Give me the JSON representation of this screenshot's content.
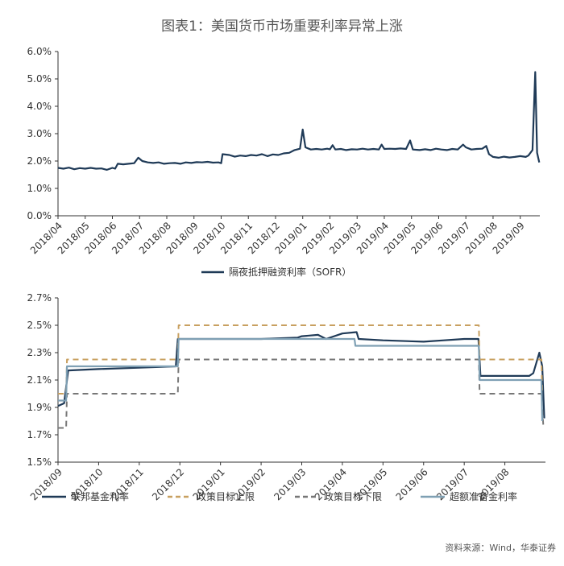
{
  "title": "图表1：美国货币市场重要利率异常上涨",
  "source": "资料来源：Wind，华泰证券",
  "chart_data": [
    {
      "type": "line",
      "ylim": [
        0,
        6
      ],
      "yticks": [
        "0.0%",
        "1.0%",
        "2.0%",
        "3.0%",
        "4.0%",
        "5.0%",
        "6.0%"
      ],
      "categories": [
        "2018/04",
        "2018/05",
        "2018/06",
        "2018/07",
        "2018/08",
        "2018/09",
        "2018/10",
        "2018/11",
        "2018/12",
        "2019/01",
        "2019/02",
        "2019/03",
        "2019/04",
        "2019/05",
        "2019/06",
        "2019/07",
        "2019/08",
        "2019/09"
      ],
      "legend_position": "bottom",
      "grid": false,
      "series": [
        {
          "name": "隔夜抵押融资利率（SOFR）",
          "color": "#1f3a57",
          "style": "solid",
          "points": [
            [
              0,
              1.75
            ],
            [
              0.2,
              1.72
            ],
            [
              0.4,
              1.76
            ],
            [
              0.6,
              1.7
            ],
            [
              0.8,
              1.74
            ],
            [
              1.0,
              1.72
            ],
            [
              1.2,
              1.75
            ],
            [
              1.4,
              1.72
            ],
            [
              1.6,
              1.73
            ],
            [
              1.8,
              1.68
            ],
            [
              2.0,
              1.75
            ],
            [
              2.1,
              1.72
            ],
            [
              2.2,
              1.9
            ],
            [
              2.4,
              1.88
            ],
            [
              2.6,
              1.9
            ],
            [
              2.8,
              1.92
            ],
            [
              2.95,
              2.12
            ],
            [
              3.1,
              2.0
            ],
            [
              3.3,
              1.95
            ],
            [
              3.5,
              1.93
            ],
            [
              3.7,
              1.95
            ],
            [
              3.9,
              1.9
            ],
            [
              4.1,
              1.92
            ],
            [
              4.3,
              1.93
            ],
            [
              4.5,
              1.9
            ],
            [
              4.7,
              1.95
            ],
            [
              4.9,
              1.93
            ],
            [
              5.1,
              1.96
            ],
            [
              5.3,
              1.95
            ],
            [
              5.5,
              1.97
            ],
            [
              5.7,
              1.94
            ],
            [
              5.9,
              1.95
            ],
            [
              6.0,
              1.92
            ],
            [
              6.05,
              2.25
            ],
            [
              6.3,
              2.22
            ],
            [
              6.5,
              2.16
            ],
            [
              6.7,
              2.2
            ],
            [
              6.9,
              2.18
            ],
            [
              7.1,
              2.22
            ],
            [
              7.3,
              2.2
            ],
            [
              7.5,
              2.25
            ],
            [
              7.7,
              2.18
            ],
            [
              7.9,
              2.24
            ],
            [
              8.1,
              2.22
            ],
            [
              8.3,
              2.28
            ],
            [
              8.5,
              2.3
            ],
            [
              8.7,
              2.4
            ],
            [
              8.9,
              2.45
            ],
            [
              9.0,
              3.15
            ],
            [
              9.1,
              2.5
            ],
            [
              9.3,
              2.42
            ],
            [
              9.5,
              2.44
            ],
            [
              9.7,
              2.42
            ],
            [
              9.9,
              2.45
            ],
            [
              10.0,
              2.43
            ],
            [
              10.1,
              2.58
            ],
            [
              10.2,
              2.42
            ],
            [
              10.4,
              2.44
            ],
            [
              10.6,
              2.4
            ],
            [
              10.8,
              2.43
            ],
            [
              11.0,
              2.42
            ],
            [
              11.2,
              2.45
            ],
            [
              11.4,
              2.42
            ],
            [
              11.6,
              2.44
            ],
            [
              11.8,
              2.42
            ],
            [
              11.9,
              2.6
            ],
            [
              12.0,
              2.44
            ],
            [
              12.2,
              2.45
            ],
            [
              12.4,
              2.44
            ],
            [
              12.6,
              2.46
            ],
            [
              12.8,
              2.44
            ],
            [
              12.95,
              2.75
            ],
            [
              13.05,
              2.42
            ],
            [
              13.3,
              2.4
            ],
            [
              13.5,
              2.43
            ],
            [
              13.7,
              2.4
            ],
            [
              13.9,
              2.45
            ],
            [
              14.1,
              2.42
            ],
            [
              14.3,
              2.4
            ],
            [
              14.5,
              2.44
            ],
            [
              14.7,
              2.42
            ],
            [
              14.9,
              2.6
            ],
            [
              15.0,
              2.5
            ],
            [
              15.2,
              2.42
            ],
            [
              15.4,
              2.44
            ],
            [
              15.6,
              2.45
            ],
            [
              15.75,
              2.55
            ],
            [
              15.85,
              2.25
            ],
            [
              16.0,
              2.15
            ],
            [
              16.2,
              2.12
            ],
            [
              16.4,
              2.16
            ],
            [
              16.6,
              2.13
            ],
            [
              16.8,
              2.15
            ],
            [
              17.0,
              2.18
            ],
            [
              17.2,
              2.15
            ],
            [
              17.3,
              2.2
            ],
            [
              17.45,
              2.4
            ],
            [
              17.55,
              5.25
            ],
            [
              17.62,
              2.3
            ],
            [
              17.7,
              1.95
            ]
          ]
        }
      ]
    },
    {
      "type": "line",
      "ylim": [
        1.5,
        2.7
      ],
      "yticks": [
        "1.5%",
        "1.7%",
        "1.9%",
        "2.1%",
        "2.3%",
        "2.5%",
        "2.7%"
      ],
      "categories": [
        "2018/09",
        "2018/10",
        "2018/11",
        "2018/12",
        "2019/01",
        "2019/02",
        "2019/03",
        "2019/04",
        "2019/05",
        "2019/06",
        "2019/07",
        "2019/08"
      ],
      "legend_position": "bottom",
      "grid": false,
      "series": [
        {
          "name": "联邦基金利率",
          "color": "#1f3a57",
          "style": "solid",
          "points": [
            [
              0,
              1.91
            ],
            [
              0.15,
              1.93
            ],
            [
              0.25,
              2.17
            ],
            [
              1,
              2.18
            ],
            [
              2,
              2.19
            ],
            [
              2.9,
              2.2
            ],
            [
              2.95,
              2.4
            ],
            [
              5,
              2.4
            ],
            [
              5.9,
              2.41
            ],
            [
              6,
              2.42
            ],
            [
              6.4,
              2.43
            ],
            [
              6.6,
              2.4
            ],
            [
              7,
              2.44
            ],
            [
              7.35,
              2.45
            ],
            [
              7.4,
              2.4
            ],
            [
              8,
              2.39
            ],
            [
              9,
              2.38
            ],
            [
              9.5,
              2.39
            ],
            [
              10,
              2.4
            ],
            [
              10.35,
              2.4
            ],
            [
              10.4,
              2.13
            ],
            [
              11,
              2.13
            ],
            [
              11.6,
              2.13
            ],
            [
              11.7,
              2.15
            ],
            [
              11.85,
              2.3
            ],
            [
              11.92,
              2.2
            ],
            [
              11.97,
              1.82
            ]
          ]
        },
        {
          "name": "政策目标上限",
          "color": "#c8a060",
          "style": "dashed",
          "points": [
            [
              0,
              2.0
            ],
            [
              0.2,
              2.0
            ],
            [
              0.22,
              2.25
            ],
            [
              2.95,
              2.25
            ],
            [
              2.97,
              2.5
            ],
            [
              10.36,
              2.5
            ],
            [
              10.38,
              2.25
            ],
            [
              11.9,
              2.25
            ],
            [
              11.92,
              2.0
            ]
          ]
        },
        {
          "name": "政策目标下限",
          "color": "#777777",
          "style": "dashed",
          "points": [
            [
              0,
              1.75
            ],
            [
              0.2,
              1.75
            ],
            [
              0.22,
              2.0
            ],
            [
              2.95,
              2.0
            ],
            [
              2.97,
              2.25
            ],
            [
              10.36,
              2.25
            ],
            [
              10.38,
              2.0
            ],
            [
              11.9,
              2.0
            ],
            [
              11.95,
              1.75
            ]
          ]
        },
        {
          "name": "超额准备金利率",
          "color": "#7fa0b4",
          "style": "solid",
          "points": [
            [
              0,
              1.95
            ],
            [
              0.2,
              1.95
            ],
            [
              0.22,
              2.2
            ],
            [
              2.95,
              2.2
            ],
            [
              2.97,
              2.4
            ],
            [
              7.3,
              2.4
            ],
            [
              7.32,
              2.35
            ],
            [
              10.36,
              2.35
            ],
            [
              10.38,
              2.1
            ],
            [
              11.9,
              2.1
            ],
            [
              11.92,
              1.8
            ]
          ]
        }
      ]
    }
  ]
}
